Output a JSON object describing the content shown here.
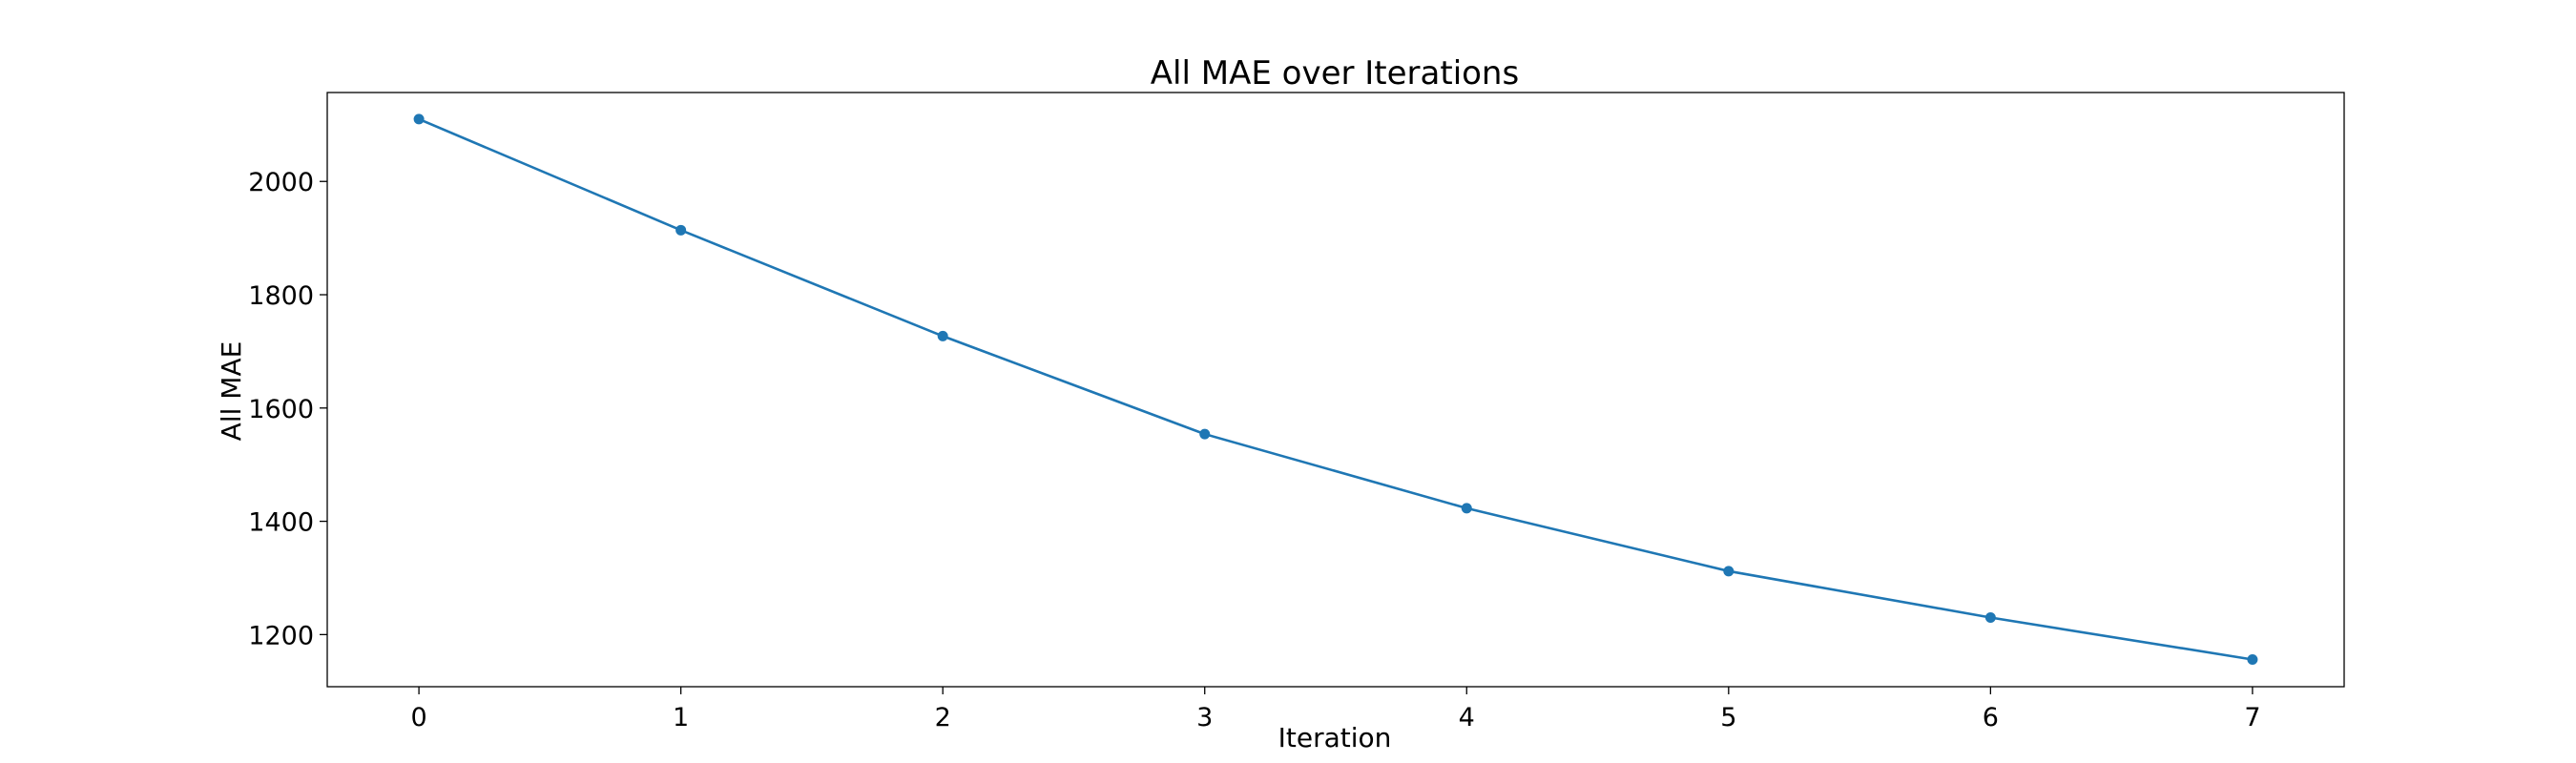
{
  "chart_data": {
    "type": "line",
    "title": "All MAE over Iterations",
    "xlabel": "Iteration",
    "ylabel": "All MAE",
    "x": [
      0,
      1,
      2,
      3,
      4,
      5,
      6,
      7
    ],
    "series": [
      {
        "values": [
          2110,
          1914,
          1727,
          1554,
          1423,
          1312,
          1230,
          1156
        ],
        "color": "#1f77b4",
        "marker": "circle"
      }
    ],
    "xlim": [
      -0.35,
      7.35
    ],
    "ylim": [
      1108,
      2157
    ],
    "xticks": [
      0,
      1,
      2,
      3,
      4,
      5,
      6,
      7
    ],
    "yticks": [
      1200,
      1400,
      1600,
      1800,
      2000
    ],
    "grid": false,
    "legend": "none"
  }
}
